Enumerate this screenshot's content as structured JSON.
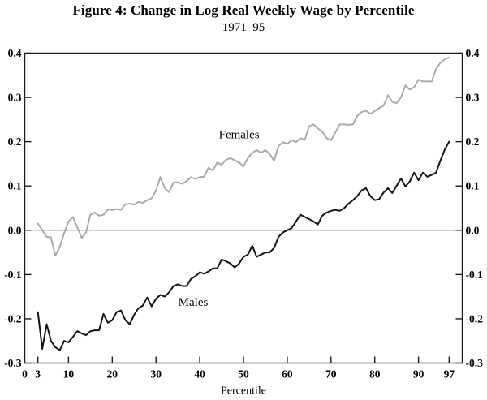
{
  "figure": {
    "title": "Figure 4: Change in Log Real Weekly Wage by Percentile",
    "subtitle": "1971–95"
  },
  "chart_data": {
    "type": "line",
    "title": "Figure 4: Change in Log Real Weekly Wage by Percentile",
    "subtitle": "1971–95",
    "xlabel": "Percentile",
    "ylabel": "",
    "xlim": [
      0,
      100
    ],
    "ylim": [
      -0.3,
      0.4
    ],
    "x_ticks": [
      0,
      3,
      10,
      20,
      30,
      40,
      50,
      60,
      70,
      80,
      90,
      97
    ],
    "y_ticks": [
      0.4,
      0.3,
      0.2,
      0.1,
      0.0,
      -0.1,
      -0.2,
      -0.3
    ],
    "y_tick_labels": [
      "0.4",
      "0.3",
      "0.2",
      "0.1",
      "0.0",
      "-0.1",
      "-0.2",
      "-0.3"
    ],
    "grid": false,
    "frame": "box",
    "reference_line_y": 0.0,
    "legend_position": "inline-labels",
    "colors": {
      "females": "#ababab",
      "males": "#141414",
      "axis": "#1a1a1a",
      "zero_line": "#858585",
      "text": "#000000"
    },
    "series": [
      {
        "name": "Females",
        "color_key": "females",
        "label_pos": {
          "x": 49,
          "y": 0.208
        },
        "x": [
          3,
          4,
          5,
          6,
          7,
          8,
          9,
          10,
          11,
          12,
          13,
          14,
          15,
          16,
          17,
          18,
          19,
          20,
          21,
          22,
          23,
          24,
          25,
          26,
          27,
          28,
          29,
          30,
          31,
          32,
          33,
          34,
          35,
          36,
          37,
          38,
          39,
          40,
          41,
          42,
          43,
          44,
          45,
          46,
          47,
          48,
          49,
          50,
          51,
          52,
          53,
          54,
          55,
          56,
          57,
          58,
          59,
          60,
          61,
          62,
          63,
          64,
          65,
          66,
          67,
          68,
          69,
          70,
          71,
          72,
          73,
          74,
          75,
          76,
          77,
          78,
          79,
          80,
          81,
          82,
          83,
          84,
          85,
          86,
          87,
          88,
          89,
          90,
          91,
          92,
          93,
          94,
          95,
          96,
          97
        ],
        "values": [
          0.015,
          0.0,
          -0.015,
          -0.016,
          -0.057,
          -0.038,
          -0.007,
          0.02,
          0.03,
          0.007,
          -0.017,
          -0.005,
          0.035,
          0.04,
          0.033,
          0.035,
          0.047,
          0.046,
          0.048,
          0.046,
          0.059,
          0.06,
          0.058,
          0.064,
          0.062,
          0.068,
          0.072,
          0.09,
          0.12,
          0.095,
          0.086,
          0.108,
          0.108,
          0.105,
          0.111,
          0.12,
          0.116,
          0.12,
          0.121,
          0.141,
          0.135,
          0.153,
          0.148,
          0.159,
          0.163,
          0.158,
          0.153,
          0.144,
          0.163,
          0.175,
          0.181,
          0.175,
          0.181,
          0.172,
          0.157,
          0.19,
          0.199,
          0.195,
          0.203,
          0.199,
          0.208,
          0.204,
          0.235,
          0.239,
          0.23,
          0.223,
          0.208,
          0.203,
          0.221,
          0.239,
          0.239,
          0.238,
          0.239,
          0.258,
          0.267,
          0.27,
          0.263,
          0.269,
          0.276,
          0.281,
          0.305,
          0.29,
          0.287,
          0.3,
          0.327,
          0.318,
          0.323,
          0.34,
          0.336,
          0.336,
          0.336,
          0.364,
          0.378,
          0.386,
          0.39
        ]
      },
      {
        "name": "Males",
        "color_key": "males",
        "label_pos": {
          "x": 38.5,
          "y": -0.171
        },
        "x": [
          3,
          4,
          5,
          6,
          7,
          8,
          9,
          10,
          11,
          12,
          13,
          14,
          15,
          16,
          17,
          18,
          19,
          20,
          21,
          22,
          23,
          24,
          25,
          26,
          27,
          28,
          29,
          30,
          31,
          32,
          33,
          34,
          35,
          36,
          37,
          38,
          39,
          40,
          41,
          42,
          43,
          44,
          45,
          46,
          47,
          48,
          49,
          50,
          51,
          52,
          53,
          54,
          55,
          56,
          57,
          58,
          59,
          60,
          61,
          62,
          63,
          64,
          65,
          66,
          67,
          68,
          69,
          70,
          71,
          72,
          73,
          74,
          75,
          76,
          77,
          78,
          79,
          80,
          81,
          82,
          83,
          84,
          85,
          86,
          87,
          88,
          89,
          90,
          91,
          92,
          93,
          94,
          95,
          96,
          97
        ],
        "values": [
          -0.185,
          -0.268,
          -0.212,
          -0.25,
          -0.264,
          -0.271,
          -0.25,
          -0.253,
          -0.241,
          -0.228,
          -0.233,
          -0.237,
          -0.228,
          -0.226,
          -0.226,
          -0.189,
          -0.209,
          -0.203,
          -0.185,
          -0.181,
          -0.203,
          -0.212,
          -0.191,
          -0.176,
          -0.17,
          -0.152,
          -0.172,
          -0.155,
          -0.146,
          -0.15,
          -0.14,
          -0.126,
          -0.122,
          -0.126,
          -0.126,
          -0.11,
          -0.104,
          -0.095,
          -0.098,
          -0.093,
          -0.086,
          -0.086,
          -0.066,
          -0.07,
          -0.075,
          -0.084,
          -0.075,
          -0.06,
          -0.055,
          -0.035,
          -0.06,
          -0.055,
          -0.05,
          -0.05,
          -0.04,
          -0.015,
          -0.005,
          0.0,
          0.005,
          0.02,
          0.035,
          0.03,
          0.025,
          0.02,
          0.013,
          0.033,
          0.04,
          0.044,
          0.046,
          0.044,
          0.05,
          0.06,
          0.068,
          0.077,
          0.09,
          0.095,
          0.077,
          0.068,
          0.07,
          0.085,
          0.095,
          0.084,
          0.1,
          0.117,
          0.099,
          0.11,
          0.13,
          0.113,
          0.13,
          0.121,
          0.125,
          0.13,
          0.157,
          0.182,
          0.2
        ]
      }
    ]
  }
}
